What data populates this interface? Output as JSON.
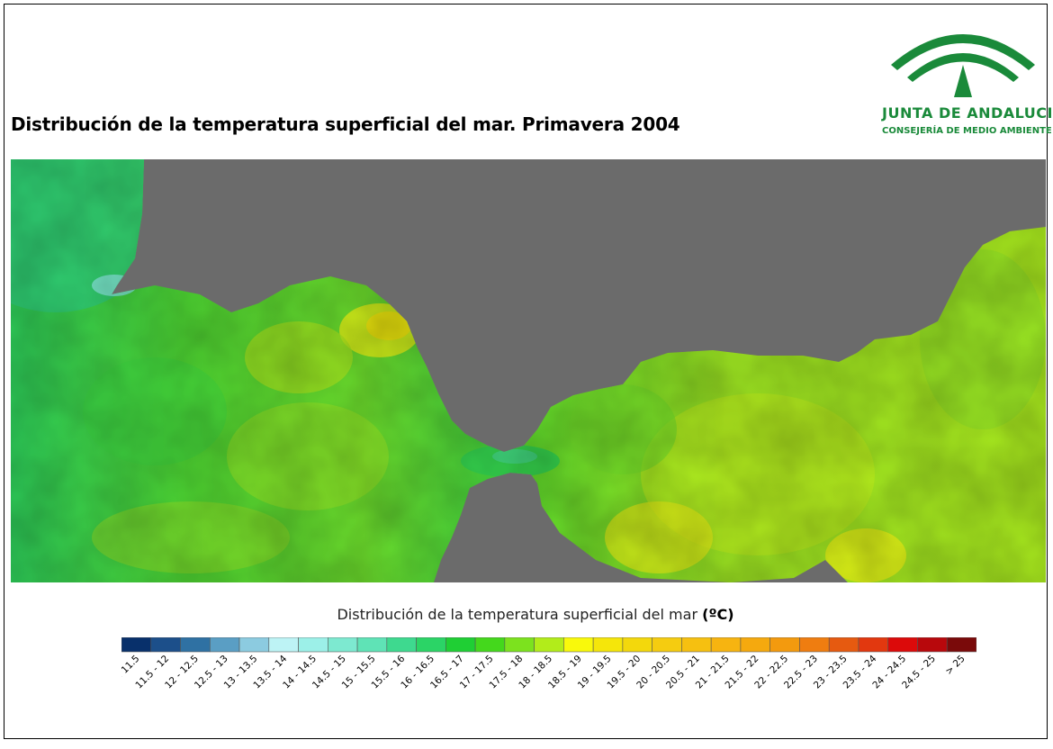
{
  "title": "Distribución de la temperatura superficial del mar. Primavera 2004",
  "logo": {
    "name": "JUNTA DE ANDALUCIA",
    "department": "CONSEJERÍA DE MEDIO AMBIENTE",
    "icon": "junta-de-andalucia-arch-logo"
  },
  "map": {
    "land_color": "#6b6b6b",
    "description_colors": [
      "#2ec96a",
      "#35d25a",
      "#44d83c",
      "#5fdc2f",
      "#8fe326",
      "#b5ea1e",
      "#dff21a",
      "#fbf11a"
    ]
  },
  "legend": {
    "title": "Distribución de la temperatura superficial del mar",
    "unit": "(ºC)",
    "classes": [
      {
        "label": "< 11.5",
        "color": "#08306b"
      },
      {
        "label": "11.5 - 12",
        "color": "#1c4f8a"
      },
      {
        "label": "12 - 12.5",
        "color": "#2f71a3"
      },
      {
        "label": "12.5 - 13",
        "color": "#5a9ec4"
      },
      {
        "label": "13 - 13.5",
        "color": "#8ccbe0"
      },
      {
        "label": "13.5 - 14",
        "color": "#bdf3f5"
      },
      {
        "label": "14 - 14.5",
        "color": "#9cf0e8"
      },
      {
        "label": "14.5 - 15",
        "color": "#7de9d0"
      },
      {
        "label": "15 - 15.5",
        "color": "#5fe3b6"
      },
      {
        "label": "15.5 - 16",
        "color": "#3ed98f"
      },
      {
        "label": "16 - 16.5",
        "color": "#2bd466"
      },
      {
        "label": "16.5 - 17",
        "color": "#1fcf34"
      },
      {
        "label": "17 - 17.5",
        "color": "#44d81c"
      },
      {
        "label": "17.5 - 18",
        "color": "#7ce21e"
      },
      {
        "label": "18 - 18.5",
        "color": "#b2ec1a"
      },
      {
        "label": "18.5 - 19",
        "color": "#f9f90b"
      },
      {
        "label": "19 - 19.5",
        "color": "#f5e60a"
      },
      {
        "label": "19.5 - 20",
        "color": "#f3d80c"
      },
      {
        "label": "20 - 20.5",
        "color": "#f5cc10"
      },
      {
        "label": "20.5 - 21",
        "color": "#f6c010"
      },
      {
        "label": "21 - 21.5",
        "color": "#f7b410"
      },
      {
        "label": "21.5 - 22",
        "color": "#f5a90e"
      },
      {
        "label": "22 - 22.5",
        "color": "#f39a0e"
      },
      {
        "label": "22.5 - 23",
        "color": "#ef7d10"
      },
      {
        "label": "23 - 23.5",
        "color": "#e65a10"
      },
      {
        "label": "23.5 - 24",
        "color": "#e2380f"
      },
      {
        "label": "24 - 24.5",
        "color": "#dc0a0a"
      },
      {
        "label": "24.5 - 25",
        "color": "#b8080c"
      },
      {
        "label": "> 25",
        "color": "#7a0a0a"
      }
    ]
  }
}
